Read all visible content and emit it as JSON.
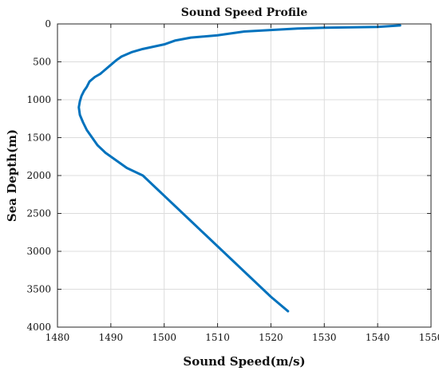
{
  "chart_data": {
    "type": "line",
    "title": "Sound Speed Profile",
    "xlabel": "Sound Speed(m/s)",
    "ylabel": "Sea Depth(m)",
    "xlim": [
      1480,
      1550
    ],
    "ylim": [
      0,
      4000
    ],
    "y_axis_reversed": true,
    "grid": true,
    "xticks": [
      1480,
      1490,
      1500,
      1510,
      1520,
      1530,
      1540,
      1550
    ],
    "yticks": [
      0,
      500,
      1000,
      1500,
      2000,
      2500,
      3000,
      3500,
      4000
    ],
    "series": [
      {
        "color": "#0072BD",
        "points": [
          [
            1544.2,
            20
          ],
          [
            1540,
            40
          ],
          [
            1530,
            50
          ],
          [
            1525,
            60
          ],
          [
            1520,
            80
          ],
          [
            1515,
            100
          ],
          [
            1510,
            150
          ],
          [
            1505,
            180
          ],
          [
            1502,
            220
          ],
          [
            1500,
            270
          ],
          [
            1498,
            300
          ],
          [
            1496,
            330
          ],
          [
            1494,
            370
          ],
          [
            1492,
            430
          ],
          [
            1491,
            480
          ],
          [
            1490,
            540
          ],
          [
            1489,
            600
          ],
          [
            1488,
            660
          ],
          [
            1487,
            700
          ],
          [
            1486,
            760
          ],
          [
            1485.5,
            830
          ],
          [
            1485,
            880
          ],
          [
            1484.5,
            950
          ],
          [
            1484.2,
            1020
          ],
          [
            1484,
            1100
          ],
          [
            1484.2,
            1200
          ],
          [
            1484.8,
            1300
          ],
          [
            1485.5,
            1400
          ],
          [
            1486.5,
            1500
          ],
          [
            1487.5,
            1600
          ],
          [
            1489,
            1700
          ],
          [
            1491,
            1800
          ],
          [
            1493,
            1900
          ],
          [
            1496,
            2000
          ],
          [
            1499,
            2200
          ],
          [
            1502,
            2400
          ],
          [
            1505,
            2600
          ],
          [
            1508,
            2800
          ],
          [
            1511,
            3000
          ],
          [
            1514,
            3200
          ],
          [
            1517,
            3400
          ],
          [
            1520,
            3600
          ],
          [
            1523.2,
            3790
          ]
        ]
      }
    ]
  }
}
